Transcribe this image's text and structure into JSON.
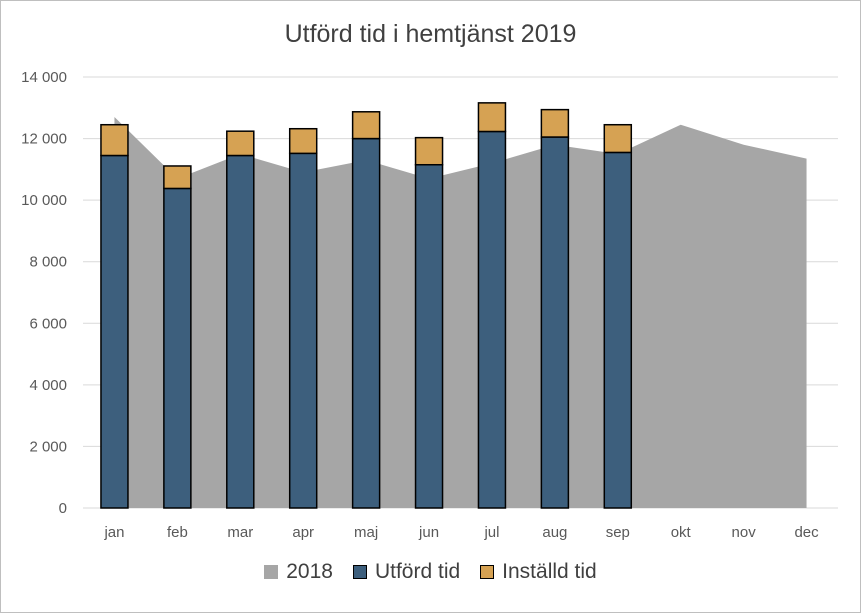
{
  "chart_data": {
    "type": "bar",
    "title": "Utförd tid i hemtjänst 2019",
    "categories": [
      "jan",
      "feb",
      "mar",
      "apr",
      "maj",
      "jun",
      "jul",
      "aug",
      "sep",
      "okt",
      "nov",
      "dec"
    ],
    "yticks": [
      "0",
      "2 000",
      "4 000",
      "6 000",
      "8 000",
      "10 000",
      "12 000",
      "14 000"
    ],
    "ylim": [
      0,
      14000
    ],
    "grid": true,
    "legend_position": "bottom",
    "series": [
      {
        "name": "2018",
        "kind": "area",
        "color": "#a6a6a6",
        "values": [
          12700,
          10700,
          11500,
          10900,
          11300,
          10700,
          11200,
          11800,
          11500,
          12450,
          11800,
          11350
        ]
      },
      {
        "name": "Utförd tid",
        "kind": "stacked-bar",
        "color": "#3d5f7d",
        "values": [
          11450,
          10380,
          11450,
          11520,
          12000,
          11150,
          12230,
          12050,
          11550,
          null,
          null,
          null
        ]
      },
      {
        "name": "Inställd tid",
        "kind": "stacked-bar",
        "color": "#d6a253",
        "values": [
          1000,
          730,
          790,
          800,
          870,
          880,
          930,
          890,
          900,
          null,
          null,
          null
        ]
      }
    ]
  }
}
